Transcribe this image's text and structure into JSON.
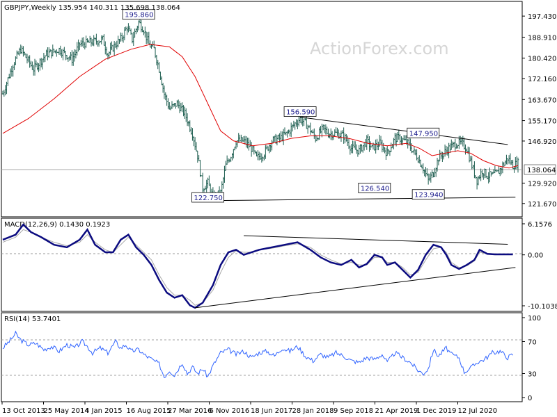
{
  "title": "GBPJPY,Weekly  135.954 140.311 135.698 138.064",
  "watermark": "ActionForex.com",
  "price_label": "138.064",
  "chart_data": [
    {
      "type": "line",
      "panel": "price",
      "title": "GBPJPY,Weekly  135.954 140.311 135.698 138.064",
      "ylim": [
        117.4,
        200.0
      ],
      "y_ticks": [
        "197.430",
        "188.910",
        "180.420",
        "172.160",
        "163.670",
        "155.170",
        "146.920",
        "138.064",
        "129.920",
        "121.670"
      ],
      "x_ticks": [
        "13 Oct 2013",
        "25 May 2014",
        "4 Jan 2015",
        "16 Aug 2015",
        "27 Mar 2016",
        "6 Nov 2016",
        "18 Jun 2017",
        "28 Jan 2018",
        "9 Sep 2018",
        "21 Apr 2019",
        "1 Dec 2019",
        "12 Jul 2020"
      ],
      "current": 138.064,
      "close_points": [
        [
          0,
          166
        ],
        [
          8,
          178
        ],
        [
          14,
          184
        ],
        [
          24,
          176
        ],
        [
          34,
          182
        ],
        [
          44,
          184
        ],
        [
          54,
          180
        ],
        [
          60,
          186
        ],
        [
          70,
          187
        ],
        [
          78,
          188
        ],
        [
          82,
          182
        ],
        [
          88,
          186
        ],
        [
          92,
          188
        ],
        [
          97,
          193
        ],
        [
          101,
          188
        ],
        [
          106,
          195
        ],
        [
          110,
          192
        ],
        [
          114,
          186
        ],
        [
          118,
          184
        ],
        [
          122,
          176
        ],
        [
          126,
          166
        ],
        [
          130,
          160
        ],
        [
          136,
          162
        ],
        [
          142,
          158
        ],
        [
          148,
          150
        ],
        [
          152,
          141
        ],
        [
          156,
          128
        ],
        [
          160,
          130
        ],
        [
          164,
          124
        ],
        [
          170,
          126
        ],
        [
          174,
          137
        ],
        [
          178,
          141
        ],
        [
          182,
          147
        ],
        [
          188,
          147
        ],
        [
          194,
          144
        ],
        [
          198,
          140
        ],
        [
          204,
          142
        ],
        [
          210,
          147
        ],
        [
          216,
          148
        ],
        [
          222,
          150
        ],
        [
          228,
          154
        ],
        [
          232,
          156
        ],
        [
          238,
          153
        ],
        [
          244,
          148
        ],
        [
          250,
          152
        ],
        [
          254,
          150
        ],
        [
          260,
          150
        ],
        [
          266,
          149
        ],
        [
          272,
          144
        ],
        [
          278,
          143
        ],
        [
          284,
          147
        ],
        [
          288,
          144
        ],
        [
          294,
          146
        ],
        [
          300,
          142
        ],
        [
          306,
          148
        ],
        [
          310,
          148
        ],
        [
          316,
          146
        ],
        [
          320,
          143
        ],
        [
          324,
          140
        ],
        [
          328,
          136
        ],
        [
          332,
          131
        ],
        [
          336,
          134
        ],
        [
          340,
          140
        ],
        [
          344,
          142
        ],
        [
          348,
          144
        ],
        [
          354,
          146
        ],
        [
          358,
          146
        ],
        [
          362,
          144
        ],
        [
          366,
          137
        ],
        [
          370,
          131
        ],
        [
          374,
          135
        ],
        [
          378,
          133
        ],
        [
          382,
          133
        ],
        [
          386,
          134
        ],
        [
          390,
          137
        ],
        [
          394,
          140
        ],
        [
          398,
          137
        ],
        [
          402,
          138
        ]
      ],
      "ma_points": [
        [
          0,
          150
        ],
        [
          20,
          156
        ],
        [
          40,
          164
        ],
        [
          60,
          173
        ],
        [
          80,
          180
        ],
        [
          100,
          184
        ],
        [
          115,
          186
        ],
        [
          130,
          185
        ],
        [
          140,
          181
        ],
        [
          150,
          173
        ],
        [
          160,
          162
        ],
        [
          170,
          151
        ],
        [
          180,
          147
        ],
        [
          195,
          145
        ],
        [
          210,
          146
        ],
        [
          225,
          148
        ],
        [
          240,
          149
        ],
        [
          255,
          149
        ],
        [
          270,
          148
        ],
        [
          285,
          146
        ],
        [
          300,
          145
        ],
        [
          315,
          146
        ],
        [
          325,
          144
        ],
        [
          335,
          141
        ],
        [
          345,
          142
        ],
        [
          355,
          143
        ],
        [
          365,
          142
        ],
        [
          375,
          139
        ],
        [
          385,
          137
        ],
        [
          395,
          136
        ],
        [
          402,
          137
        ]
      ],
      "annotations": [
        {
          "label": "195.860",
          "x": 106,
          "y": 195.86
        },
        {
          "label": "156.590",
          "x": 232,
          "y": 156.59
        },
        {
          "label": "147.950",
          "x": 328,
          "y": 147.95
        },
        {
          "label": "126.540",
          "x": 290,
          "y": 126.54
        },
        {
          "label": "123.940",
          "x": 332,
          "y": 123.94
        },
        {
          "label": "122.750",
          "x": 160,
          "y": 122.75
        }
      ],
      "trendlines": [
        {
          "name": "upper",
          "from": [
            232,
            156.6
          ],
          "to": [
            394,
            145.5
          ]
        },
        {
          "name": "lower",
          "from": [
            160,
            122.8
          ],
          "to": [
            400,
            124.2
          ]
        }
      ]
    },
    {
      "type": "line",
      "panel": "macd",
      "title": "MACD(12,26,9) 0.1430 0.1923",
      "ylim": [
        -10.1038,
        6.1576
      ],
      "y_ticks": [
        "6.1576",
        "0.00",
        "-10.1038"
      ],
      "macd_points": [
        [
          0,
          3
        ],
        [
          10,
          4
        ],
        [
          16,
          6
        ],
        [
          22,
          4.5
        ],
        [
          30,
          3.5
        ],
        [
          40,
          2
        ],
        [
          50,
          1.5
        ],
        [
          60,
          3
        ],
        [
          66,
          5
        ],
        [
          72,
          2
        ],
        [
          80,
          0.5
        ],
        [
          86,
          0.5
        ],
        [
          92,
          3
        ],
        [
          98,
          4
        ],
        [
          104,
          1.5
        ],
        [
          110,
          0
        ],
        [
          116,
          -2
        ],
        [
          122,
          -5
        ],
        [
          128,
          -7.5
        ],
        [
          134,
          -8.5
        ],
        [
          140,
          -8
        ],
        [
          146,
          -10
        ],
        [
          150,
          -10.5
        ],
        [
          156,
          -9.5
        ],
        [
          164,
          -6
        ],
        [
          170,
          -2
        ],
        [
          176,
          0.5
        ],
        [
          182,
          1
        ],
        [
          188,
          0
        ],
        [
          194,
          0.5
        ],
        [
          200,
          1
        ],
        [
          210,
          1.5
        ],
        [
          220,
          2
        ],
        [
          230,
          2.5
        ],
        [
          240,
          1
        ],
        [
          248,
          -0.5
        ],
        [
          256,
          -1.5
        ],
        [
          264,
          -2
        ],
        [
          272,
          -1
        ],
        [
          278,
          -2.5
        ],
        [
          284,
          -1.8
        ],
        [
          290,
          0
        ],
        [
          296,
          -0.5
        ],
        [
          300,
          -2
        ],
        [
          306,
          -1.5
        ],
        [
          312,
          -3
        ],
        [
          318,
          -4.5
        ],
        [
          324,
          -3
        ],
        [
          330,
          0
        ],
        [
          336,
          2
        ],
        [
          342,
          1.5
        ],
        [
          346,
          0
        ],
        [
          350,
          -2
        ],
        [
          356,
          -2.8
        ],
        [
          362,
          -2
        ],
        [
          368,
          -1
        ],
        [
          372,
          1
        ],
        [
          378,
          0.2
        ],
        [
          384,
          0.1
        ],
        [
          392,
          0.1
        ],
        [
          398,
          0.1
        ]
      ],
      "signal_points": [
        [
          0,
          2.5
        ],
        [
          10,
          3.5
        ],
        [
          16,
          5
        ],
        [
          22,
          4.5
        ],
        [
          30,
          3.5
        ],
        [
          40,
          2.5
        ],
        [
          50,
          1.8
        ],
        [
          60,
          2.5
        ],
        [
          66,
          4
        ],
        [
          72,
          2.5
        ],
        [
          80,
          1
        ],
        [
          86,
          0.5
        ],
        [
          92,
          2
        ],
        [
          98,
          3.5
        ],
        [
          104,
          2
        ],
        [
          110,
          0.5
        ],
        [
          116,
          -1
        ],
        [
          122,
          -4
        ],
        [
          128,
          -6.5
        ],
        [
          134,
          -8
        ],
        [
          140,
          -8
        ],
        [
          146,
          -9
        ],
        [
          150,
          -10
        ],
        [
          156,
          -9.5
        ],
        [
          164,
          -7
        ],
        [
          170,
          -3.5
        ],
        [
          176,
          -0.5
        ],
        [
          182,
          0.8
        ],
        [
          188,
          0.5
        ],
        [
          194,
          0.5
        ],
        [
          200,
          1
        ],
        [
          210,
          1.3
        ],
        [
          220,
          1.8
        ],
        [
          230,
          2.2
        ],
        [
          240,
          1.5
        ],
        [
          248,
          0
        ],
        [
          256,
          -1
        ],
        [
          264,
          -1.8
        ],
        [
          272,
          -1.5
        ],
        [
          278,
          -2
        ],
        [
          284,
          -2
        ],
        [
          290,
          -0.5
        ],
        [
          296,
          -0.5
        ],
        [
          300,
          -1.5
        ],
        [
          306,
          -1.5
        ],
        [
          312,
          -2.5
        ],
        [
          318,
          -4
        ],
        [
          324,
          -3.5
        ],
        [
          330,
          -1
        ],
        [
          336,
          1.2
        ],
        [
          342,
          1.5
        ],
        [
          346,
          0.5
        ],
        [
          350,
          -1.5
        ],
        [
          356,
          -2.5
        ],
        [
          362,
          -2.2
        ],
        [
          368,
          -1.2
        ],
        [
          372,
          0.5
        ],
        [
          378,
          0.3
        ],
        [
          384,
          0.2
        ],
        [
          392,
          0.2
        ],
        [
          398,
          0.2
        ]
      ],
      "trendlines": [
        {
          "name": "upper",
          "from": [
            188,
            3.8
          ],
          "to": [
            394,
            2.1
          ]
        },
        {
          "name": "lower",
          "from": [
            150,
            -10.5
          ],
          "to": [
            400,
            -2.5
          ]
        }
      ]
    },
    {
      "type": "line",
      "panel": "rsi",
      "title": "RSI(14) 53.7401",
      "ylim": [
        0,
        100
      ],
      "y_ticks": [
        "100",
        "70",
        "30",
        "0"
      ],
      "levels": [
        70,
        30
      ],
      "rsi_points": [
        [
          0,
          62
        ],
        [
          6,
          72
        ],
        [
          10,
          80
        ],
        [
          14,
          72
        ],
        [
          20,
          66
        ],
        [
          26,
          68
        ],
        [
          32,
          60
        ],
        [
          38,
          64
        ],
        [
          44,
          58
        ],
        [
          50,
          66
        ],
        [
          56,
          62
        ],
        [
          62,
          70
        ],
        [
          66,
          64
        ],
        [
          70,
          56
        ],
        [
          76,
          62
        ],
        [
          82,
          56
        ],
        [
          88,
          70
        ],
        [
          92,
          62
        ],
        [
          96,
          66
        ],
        [
          100,
          58
        ],
        [
          106,
          60
        ],
        [
          110,
          54
        ],
        [
          116,
          48
        ],
        [
          122,
          42
        ],
        [
          126,
          26
        ],
        [
          130,
          34
        ],
        [
          134,
          28
        ],
        [
          140,
          44
        ],
        [
          144,
          30
        ],
        [
          148,
          38
        ],
        [
          152,
          30
        ],
        [
          156,
          36
        ],
        [
          160,
          26
        ],
        [
          164,
          40
        ],
        [
          170,
          56
        ],
        [
          176,
          60
        ],
        [
          182,
          54
        ],
        [
          188,
          58
        ],
        [
          194,
          50
        ],
        [
          200,
          56
        ],
        [
          206,
          58
        ],
        [
          212,
          52
        ],
        [
          218,
          62
        ],
        [
          224,
          58
        ],
        [
          230,
          64
        ],
        [
          236,
          52
        ],
        [
          242,
          46
        ],
        [
          248,
          54
        ],
        [
          254,
          50
        ],
        [
          260,
          56
        ],
        [
          266,
          52
        ],
        [
          272,
          46
        ],
        [
          278,
          44
        ],
        [
          284,
          50
        ],
        [
          290,
          48
        ],
        [
          296,
          54
        ],
        [
          300,
          44
        ],
        [
          306,
          56
        ],
        [
          312,
          50
        ],
        [
          318,
          44
        ],
        [
          324,
          34
        ],
        [
          328,
          30
        ],
        [
          332,
          36
        ],
        [
          336,
          60
        ],
        [
          340,
          52
        ],
        [
          346,
          62
        ],
        [
          350,
          54
        ],
        [
          356,
          50
        ],
        [
          360,
          32
        ],
        [
          366,
          38
        ],
        [
          370,
          44
        ],
        [
          376,
          48
        ],
        [
          382,
          56
        ],
        [
          388,
          58
        ],
        [
          394,
          50
        ],
        [
          398,
          54
        ]
      ]
    }
  ]
}
